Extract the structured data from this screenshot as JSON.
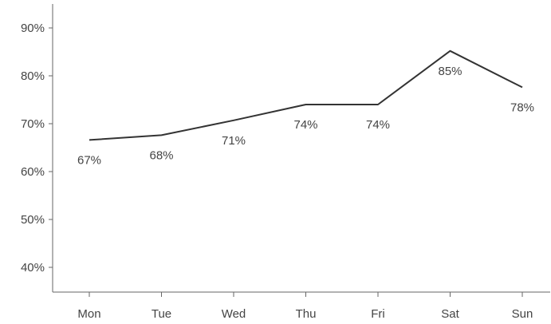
{
  "chart_data": {
    "type": "line",
    "title": "",
    "xlabel": "",
    "ylabel": "",
    "categories": [
      "Mon",
      "Tue",
      "Wed",
      "Thu",
      "Fri",
      "Sat",
      "Sun"
    ],
    "series": [
      {
        "values": [
          66.6,
          67.6,
          70.7,
          74.0,
          74.0,
          85.2,
          77.6
        ],
        "labels": [
          "67%",
          "68%",
          "71%",
          "74%",
          "74%",
          "85%",
          "78%"
        ],
        "color": "#333333"
      }
    ],
    "ylim": [
      35,
      95
    ],
    "yticks": [
      40,
      50,
      60,
      70,
      80,
      90
    ],
    "ytick_labels": [
      "40%",
      "50%",
      "60%",
      "70%",
      "80%",
      "90%"
    ],
    "grid": false,
    "legend": "none"
  }
}
